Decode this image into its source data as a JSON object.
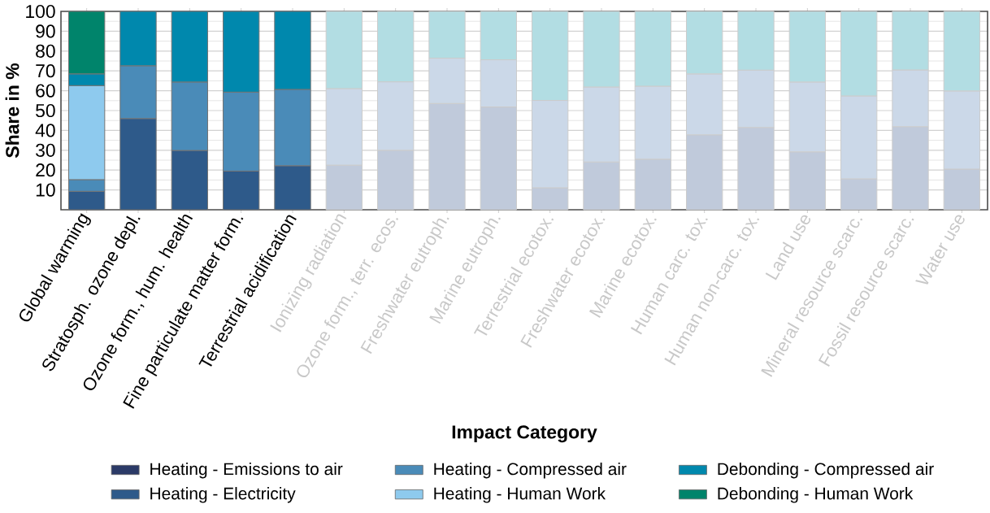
{
  "chart_data": {
    "type": "bar",
    "stacked": true,
    "xlabel": "Impact Category",
    "ylabel": "Share in %",
    "categories": [
      "Global warming",
      "Stratosph. ozone depl.",
      "Ozone form., hum. health",
      "Fine particulate matter form.",
      "Terrestrial acidification",
      "Ionizing radiation",
      "Ozone form., terr. ecos.",
      "Freshwater eutroph.",
      "Marine eutroph.",
      "Terrestrial ecotox.",
      "Freshwater ecotox.",
      "Marine ecotox.",
      "Human carc. tox.",
      "Human non-carc. tox.",
      "Land use",
      "Mineral resource scarc.",
      "Fossil resource scarc.",
      "Water use"
    ],
    "series": [
      {
        "name": "Heating - Emissions to air",
        "color": "#2b3a67",
        "values": [
          0,
          0,
          0,
          0,
          0,
          0,
          0,
          0,
          0,
          0,
          0,
          0,
          0,
          0,
          0,
          0,
          0,
          0
        ]
      },
      {
        "name": "Heating - Electricity",
        "color": "#2e5a8a",
        "values": [
          9.3,
          46.0,
          29.9,
          19.5,
          22.2,
          22.5,
          30.0,
          53.6,
          51.8,
          11.1,
          24.1,
          25.5,
          37.8,
          41.5,
          29.2,
          15.6,
          41.9,
          20.5
        ],
        "colors": [
          "#2e5a8a",
          "#2e5a8a",
          "#2e5a8a",
          "#2e5a8a",
          "#2e5a8a",
          "#c0cadb",
          "#c0cadb",
          "#c0cadb",
          "#c0cadb",
          "#c0cadb",
          "#c0cadb",
          "#c0cadb",
          "#c0cadb",
          "#c0cadb",
          "#c0cadb",
          "#c0cadb",
          "#c0cadb",
          "#c0cadb"
        ]
      },
      {
        "name": "Heating - Compressed air",
        "color": "#4a8bb8",
        "values": [
          5.9,
          26.6,
          34.5,
          39.8,
          38.5,
          38.6,
          34.5,
          22.8,
          23.8,
          44.0,
          37.8,
          36.8,
          30.7,
          28.9,
          35.2,
          41.8,
          28.6,
          39.4
        ],
        "colors": [
          "#4a8bb8",
          "#4a8bb8",
          "#4a8bb8",
          "#4a8bb8",
          "#4a8bb8",
          "#cbd8e8",
          "#cbd8e8",
          "#cbd8e8",
          "#cbd8e8",
          "#cbd8e8",
          "#cbd8e8",
          "#cbd8e8",
          "#cbd8e8",
          "#cbd8e8",
          "#cbd8e8",
          "#cbd8e8",
          "#cbd8e8",
          "#cbd8e8"
        ]
      },
      {
        "name": "Heating - Human Work",
        "color": "#8ecaee",
        "values": [
          47.4,
          0,
          0,
          0,
          0,
          0,
          0,
          0,
          0,
          0,
          0,
          0,
          0,
          0,
          0,
          0,
          0,
          0
        ]
      },
      {
        "name": "Debonding - Compressed air",
        "color": "#0088ad",
        "values": [
          5.9,
          27.4,
          35.6,
          40.7,
          39.3,
          38.9,
          35.5,
          23.6,
          24.4,
          44.9,
          38.1,
          37.7,
          31.5,
          29.6,
          35.6,
          42.6,
          29.5,
          40.1
        ],
        "colors": [
          "#0088ad",
          "#0088ad",
          "#0088ad",
          "#0088ad",
          "#0088ad",
          "#b2dde3",
          "#b2dde3",
          "#b2dde3",
          "#b2dde3",
          "#b2dde3",
          "#b2dde3",
          "#b2dde3",
          "#b2dde3",
          "#b2dde3",
          "#b2dde3",
          "#b2dde3",
          "#b2dde3",
          "#b2dde3"
        ]
      },
      {
        "name": "Debonding - Human Work",
        "color": "#00846b",
        "values": [
          31.5,
          0,
          0,
          0,
          0,
          0,
          0,
          0,
          0,
          0,
          0,
          0,
          0,
          0,
          0,
          0,
          0,
          0
        ]
      }
    ],
    "ylim": [
      0,
      100
    ],
    "yticks": [
      10,
      20,
      30,
      40,
      50,
      60,
      70,
      80,
      90,
      100
    ],
    "grid": "y",
    "legend": "bottom"
  }
}
